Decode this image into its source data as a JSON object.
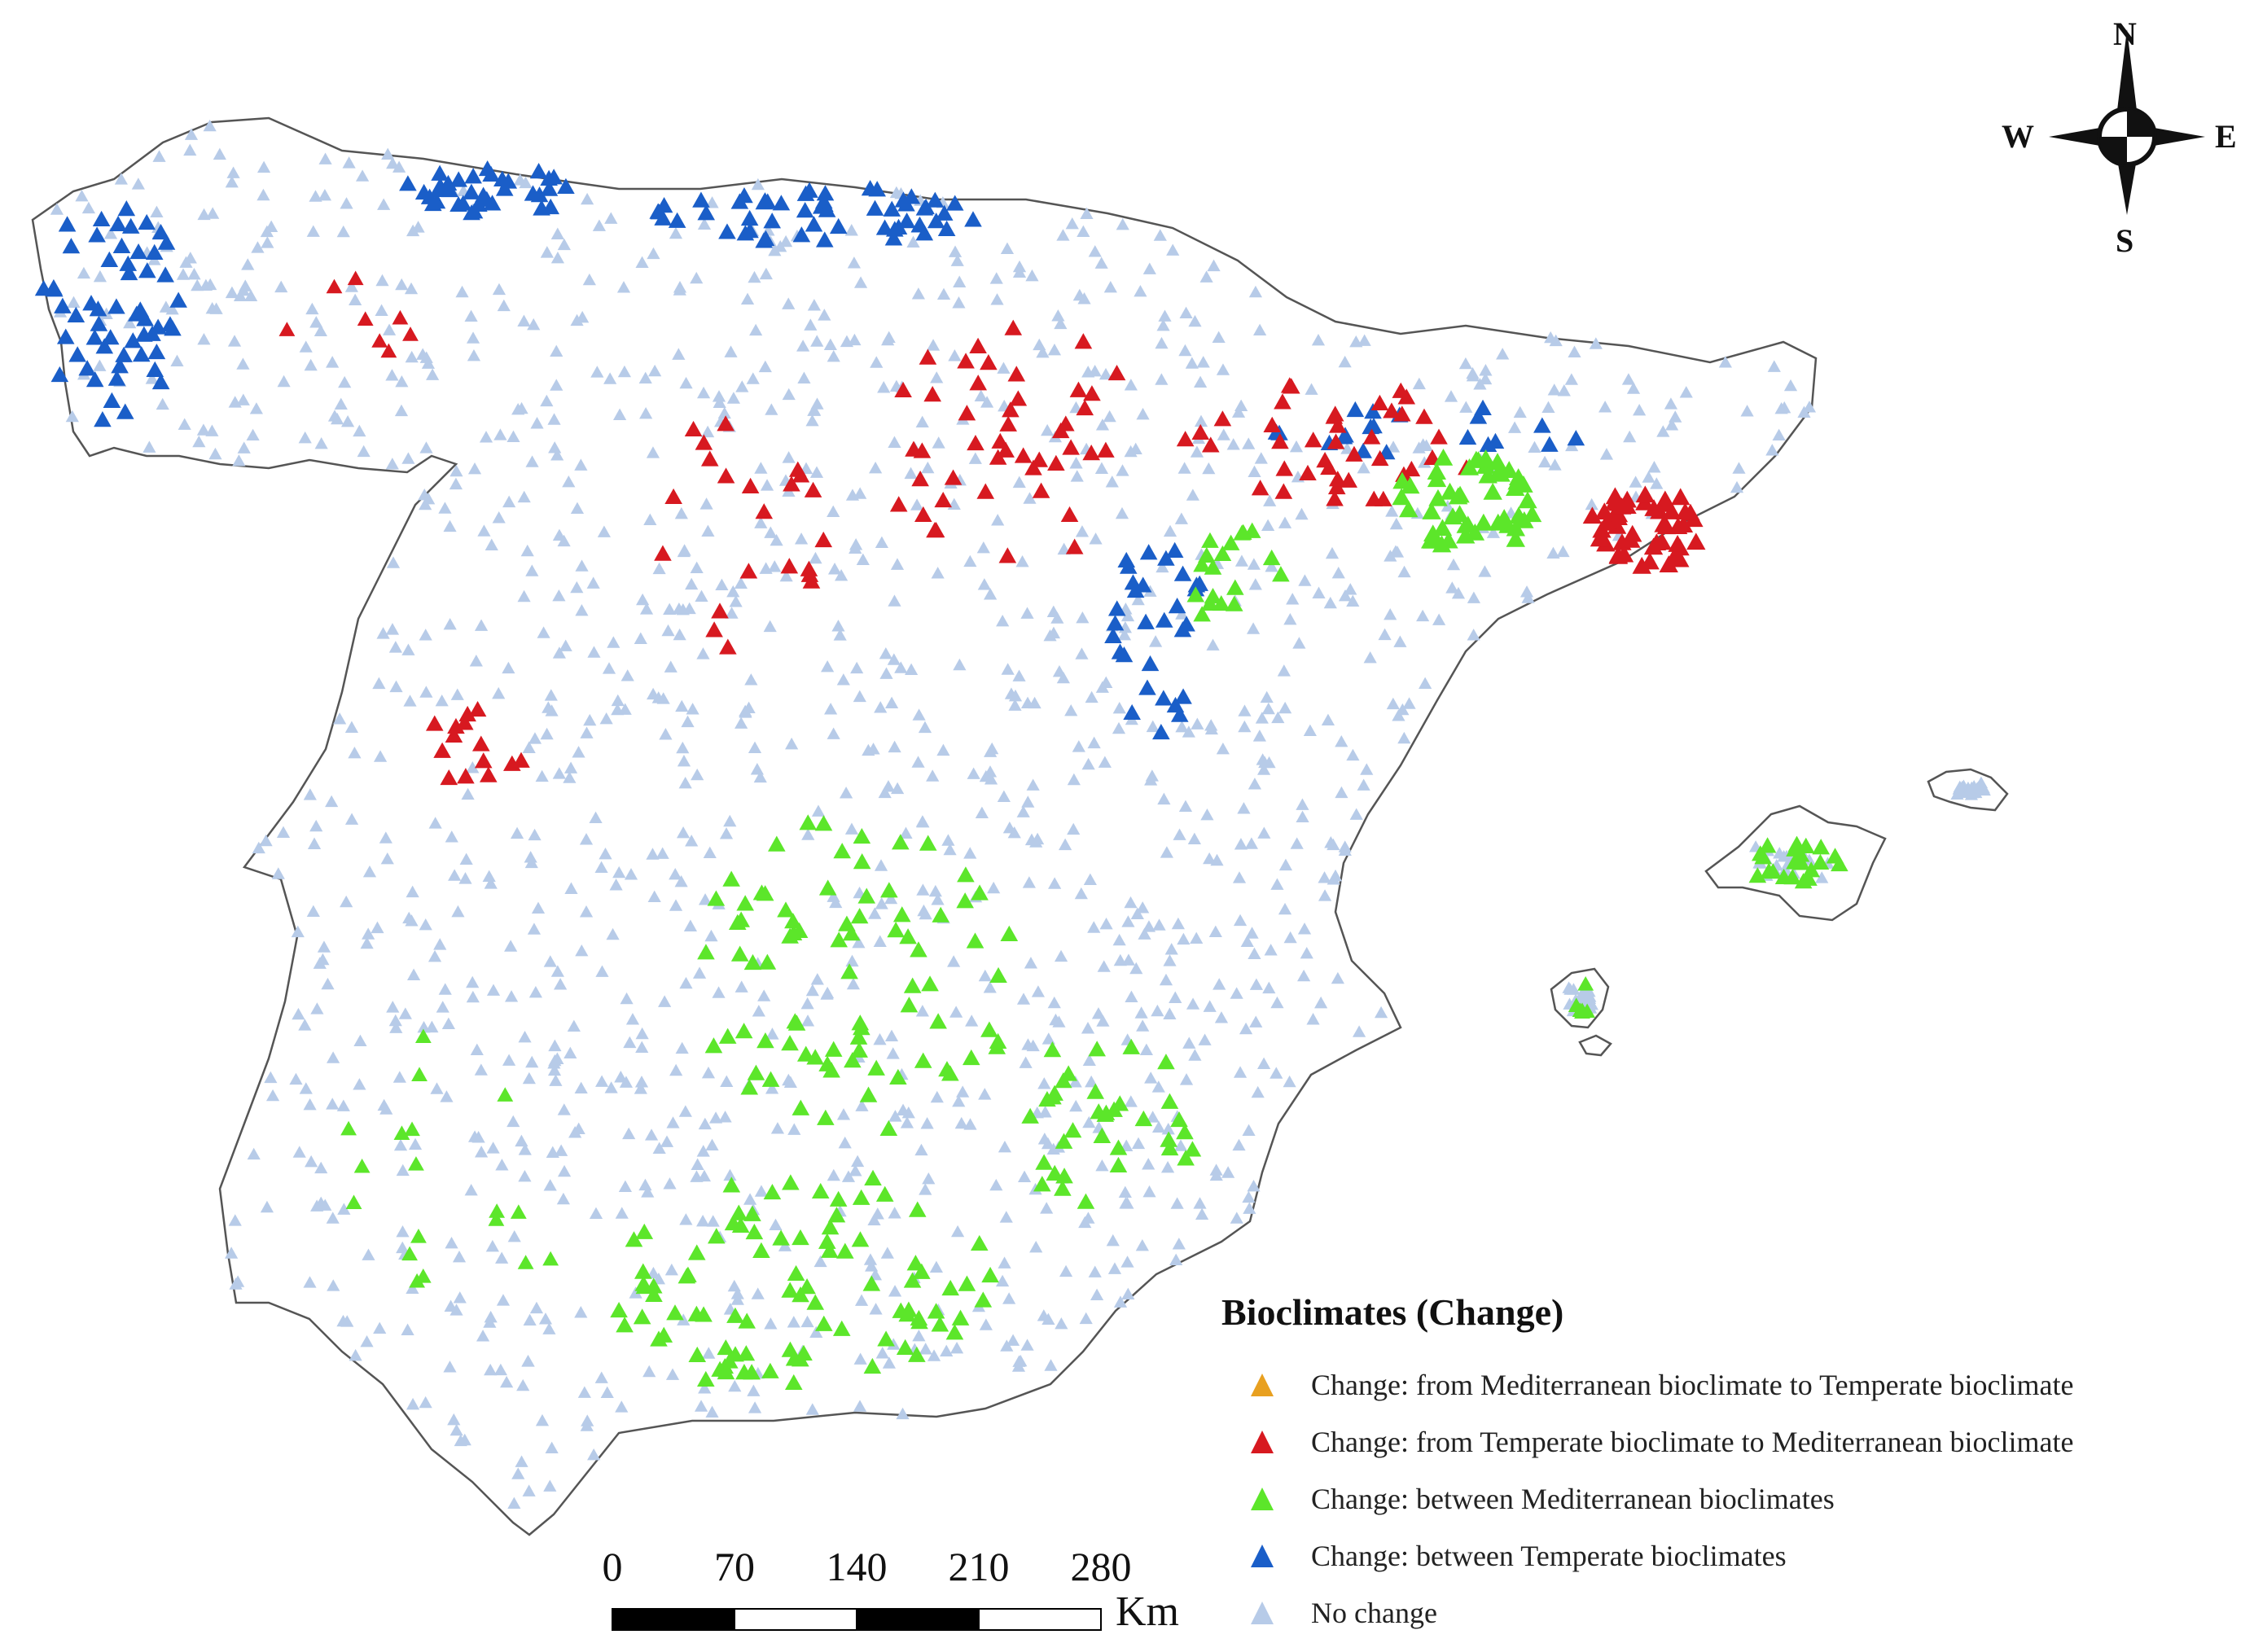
{
  "legend": {
    "title": "Bioclimates (Change)",
    "items": [
      {
        "label": "Change: from Mediterranean bioclimate to Temperate bioclimate",
        "color": "#e8a020"
      },
      {
        "label": "Change: from Temperate bioclimate to Mediterranean bioclimate",
        "color": "#d71920"
      },
      {
        "label": "Change: between Mediterranean bioclimates",
        "color": "#5ce62a"
      },
      {
        "label": "Change: between Temperate bioclimates",
        "color": "#1a5ec8"
      },
      {
        "label": "No change",
        "color": "#b7cbe8"
      }
    ]
  },
  "scale_bar": {
    "labels": [
      "0",
      "70",
      "140",
      "210",
      "280"
    ],
    "unit": "Km"
  },
  "compass": {
    "north": "N",
    "south": "S",
    "east": "E",
    "west": "W"
  },
  "colors": {
    "no_change": "#b7cbe8",
    "temperate_change": "#1a5ec8",
    "temp_to_med": "#d71920",
    "med_change": "#5ce62a",
    "outline": "#555555"
  }
}
